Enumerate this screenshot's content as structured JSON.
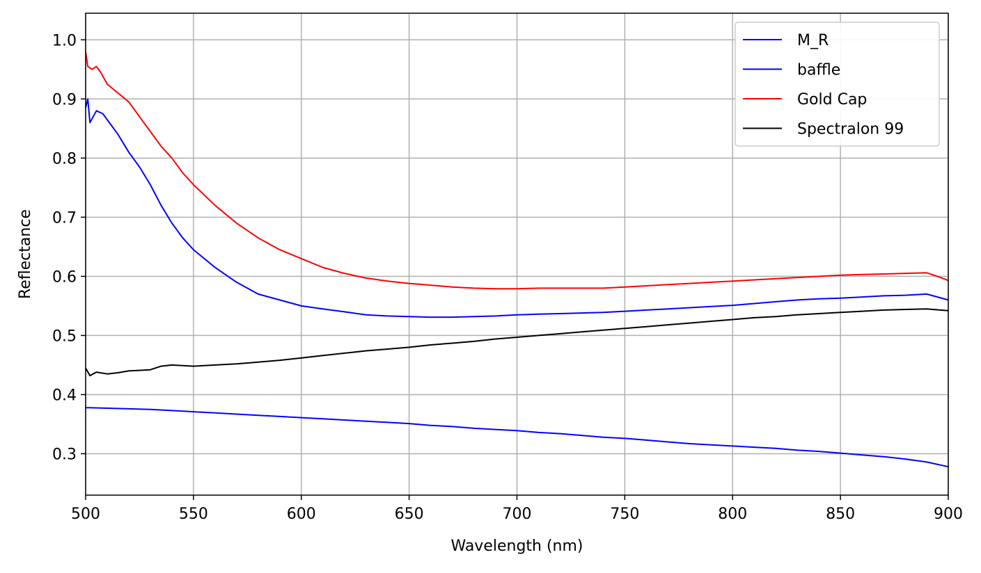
{
  "chart_data": {
    "type": "line",
    "xlabel": "Wavelength (nm)",
    "ylabel": "Reflectance",
    "xlim": [
      500,
      900
    ],
    "ylim": [
      0.23,
      1.045
    ],
    "xticks": [
      500,
      550,
      600,
      650,
      700,
      750,
      800,
      850,
      900
    ],
    "yticks": [
      0.3,
      0.4,
      0.5,
      0.6,
      0.7,
      0.8,
      0.9,
      1.0
    ],
    "xtick_labels": [
      "500",
      "550",
      "600",
      "650",
      "700",
      "750",
      "800",
      "850",
      "900"
    ],
    "ytick_labels": [
      "0.3",
      "0.4",
      "0.5",
      "0.6",
      "0.7",
      "0.8",
      "0.9",
      "1.0"
    ],
    "grid": true,
    "legend_position": "top-right",
    "series": [
      {
        "name": "M_R",
        "color": "#0000ff",
        "x": [
          500,
          510,
          520,
          530,
          540,
          550,
          560,
          570,
          580,
          590,
          600,
          610,
          620,
          630,
          640,
          650,
          660,
          670,
          680,
          690,
          700,
          710,
          720,
          730,
          740,
          750,
          760,
          770,
          780,
          790,
          800,
          810,
          820,
          830,
          840,
          850,
          860,
          870,
          880,
          890,
          900
        ],
        "y": [
          0.378,
          0.377,
          0.376,
          0.375,
          0.373,
          0.371,
          0.369,
          0.367,
          0.365,
          0.363,
          0.361,
          0.359,
          0.357,
          0.355,
          0.353,
          0.351,
          0.348,
          0.346,
          0.343,
          0.341,
          0.339,
          0.336,
          0.334,
          0.331,
          0.328,
          0.326,
          0.323,
          0.32,
          0.317,
          0.315,
          0.313,
          0.311,
          0.309,
          0.306,
          0.304,
          0.301,
          0.298,
          0.295,
          0.291,
          0.286,
          0.278
        ]
      },
      {
        "name": "baffle",
        "color": "#0000ff",
        "x": [
          500,
          501,
          502,
          505,
          508,
          510,
          515,
          520,
          525,
          530,
          535,
          540,
          545,
          550,
          560,
          570,
          580,
          590,
          600,
          610,
          620,
          630,
          640,
          650,
          660,
          670,
          680,
          690,
          700,
          710,
          720,
          730,
          740,
          750,
          760,
          770,
          780,
          790,
          800,
          810,
          820,
          830,
          840,
          850,
          860,
          870,
          880,
          890,
          895,
          900
        ],
        "y": [
          0.885,
          0.9,
          0.86,
          0.88,
          0.875,
          0.865,
          0.84,
          0.81,
          0.785,
          0.755,
          0.72,
          0.69,
          0.665,
          0.645,
          0.615,
          0.59,
          0.57,
          0.56,
          0.55,
          0.545,
          0.54,
          0.535,
          0.533,
          0.532,
          0.531,
          0.531,
          0.532,
          0.533,
          0.535,
          0.536,
          0.537,
          0.538,
          0.539,
          0.541,
          0.543,
          0.545,
          0.547,
          0.549,
          0.551,
          0.554,
          0.557,
          0.56,
          0.562,
          0.563,
          0.565,
          0.567,
          0.568,
          0.57,
          0.565,
          0.56
        ]
      },
      {
        "name": "Gold Cap",
        "color": "#ff0000",
        "x": [
          500,
          501,
          503,
          505,
          507,
          510,
          515,
          520,
          525,
          530,
          535,
          540,
          545,
          550,
          560,
          570,
          580,
          590,
          600,
          610,
          620,
          630,
          640,
          650,
          660,
          670,
          680,
          690,
          700,
          710,
          720,
          730,
          740,
          750,
          760,
          770,
          780,
          790,
          800,
          810,
          820,
          830,
          840,
          850,
          860,
          870,
          880,
          890,
          895,
          900
        ],
        "y": [
          0.98,
          0.955,
          0.95,
          0.955,
          0.945,
          0.925,
          0.91,
          0.895,
          0.87,
          0.845,
          0.82,
          0.8,
          0.775,
          0.755,
          0.72,
          0.69,
          0.665,
          0.645,
          0.63,
          0.615,
          0.605,
          0.597,
          0.592,
          0.588,
          0.585,
          0.582,
          0.58,
          0.579,
          0.579,
          0.58,
          0.58,
          0.58,
          0.58,
          0.582,
          0.584,
          0.586,
          0.588,
          0.59,
          0.592,
          0.594,
          0.596,
          0.598,
          0.6,
          0.602,
          0.603,
          0.604,
          0.605,
          0.606,
          0.6,
          0.593
        ]
      },
      {
        "name": "Spectralon 99",
        "color": "#000000",
        "x": [
          500,
          502,
          505,
          510,
          515,
          520,
          525,
          530,
          535,
          540,
          550,
          560,
          570,
          580,
          590,
          600,
          610,
          620,
          630,
          640,
          650,
          660,
          670,
          680,
          690,
          700,
          710,
          720,
          730,
          740,
          750,
          760,
          770,
          780,
          790,
          800,
          810,
          820,
          830,
          840,
          850,
          860,
          870,
          880,
          890,
          900
        ],
        "y": [
          0.445,
          0.432,
          0.438,
          0.435,
          0.437,
          0.44,
          0.441,
          0.442,
          0.448,
          0.45,
          0.448,
          0.45,
          0.452,
          0.455,
          0.458,
          0.462,
          0.466,
          0.47,
          0.474,
          0.477,
          0.48,
          0.484,
          0.487,
          0.49,
          0.494,
          0.497,
          0.5,
          0.503,
          0.506,
          0.509,
          0.512,
          0.515,
          0.518,
          0.521,
          0.524,
          0.527,
          0.53,
          0.532,
          0.535,
          0.537,
          0.539,
          0.541,
          0.543,
          0.544,
          0.545,
          0.542
        ]
      }
    ]
  }
}
